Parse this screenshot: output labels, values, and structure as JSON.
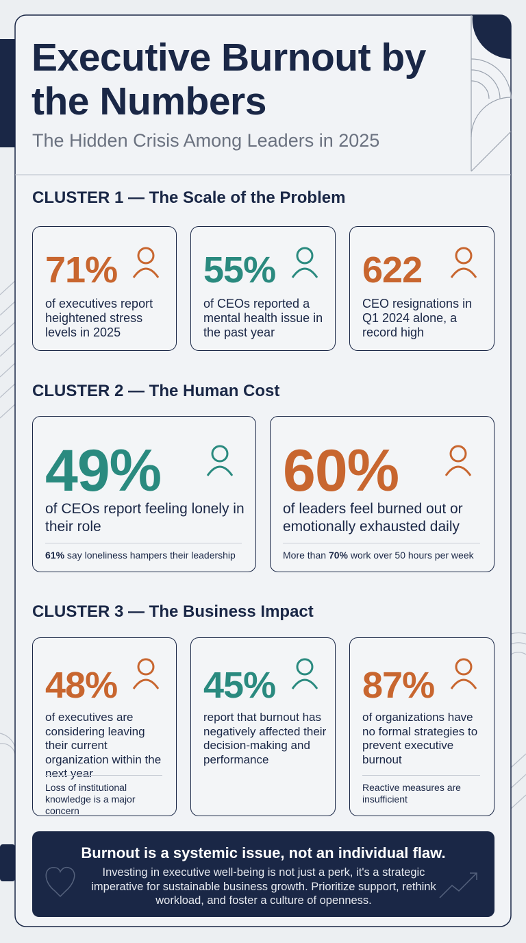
{
  "header": {
    "title": "Executive Burnout by the Numbers",
    "subtitle": "The Hidden Crisis Among Leaders in 2025"
  },
  "clusters": [
    {
      "heading": "CLUSTER 1 — The Scale of the Problem",
      "cards": [
        {
          "stat": "71%",
          "color": "#c8662f",
          "text": "of executives report heightened stress levels in 2025"
        },
        {
          "stat": "55%",
          "color": "#2a8a7f",
          "text": "of CEOs reported a mental health issue in the past year"
        },
        {
          "stat": "622",
          "color": "#c8662f",
          "text": "CEO resignations in Q1 2024 alone, a record high"
        }
      ]
    },
    {
      "heading": "CLUSTER 2 — The Human Cost",
      "cards": [
        {
          "stat": "49%",
          "color": "#2a8a7f",
          "text": "of CEOs report feeling lonely in their role",
          "note": [
            {
              "text": "61%",
              "bold": true
            },
            {
              "text": " say loneliness hampers their leadership"
            }
          ]
        },
        {
          "stat": "60%",
          "color": "#c8662f",
          "text": "of leaders feel burned out or emotionally exhausted daily",
          "note": [
            {
              "text": "More than "
            },
            {
              "text": "70%",
              "bold": true
            },
            {
              "text": " work over 50 hours per week"
            }
          ]
        }
      ]
    },
    {
      "heading": "CLUSTER 3 — The Business Impact",
      "cards": [
        {
          "stat": "48%",
          "color": "#c8662f",
          "text": "of executives are considering leaving their current organization within the next year",
          "note": [
            {
              "text": "Loss of institutional knowledge is a major concern"
            }
          ]
        },
        {
          "stat": "45%",
          "color": "#2a8a7f",
          "text": "report that burnout has negatively affected their decision-making and performance"
        },
        {
          "stat": "87%",
          "color": "#c8662f",
          "text": "of organizations have no formal strategies to prevent executive burnout",
          "note": [
            {
              "text": "Reactive measures are insufficient"
            }
          ]
        }
      ]
    }
  ],
  "banner": {
    "heading": "Burnout is a systemic issue, not an individual flaw.",
    "text": "Investing in executive well-being is not just a perk, it's a strategic imperative for sustainable business growth. Prioritize support, rethink workload, and foster a culture of openness."
  }
}
